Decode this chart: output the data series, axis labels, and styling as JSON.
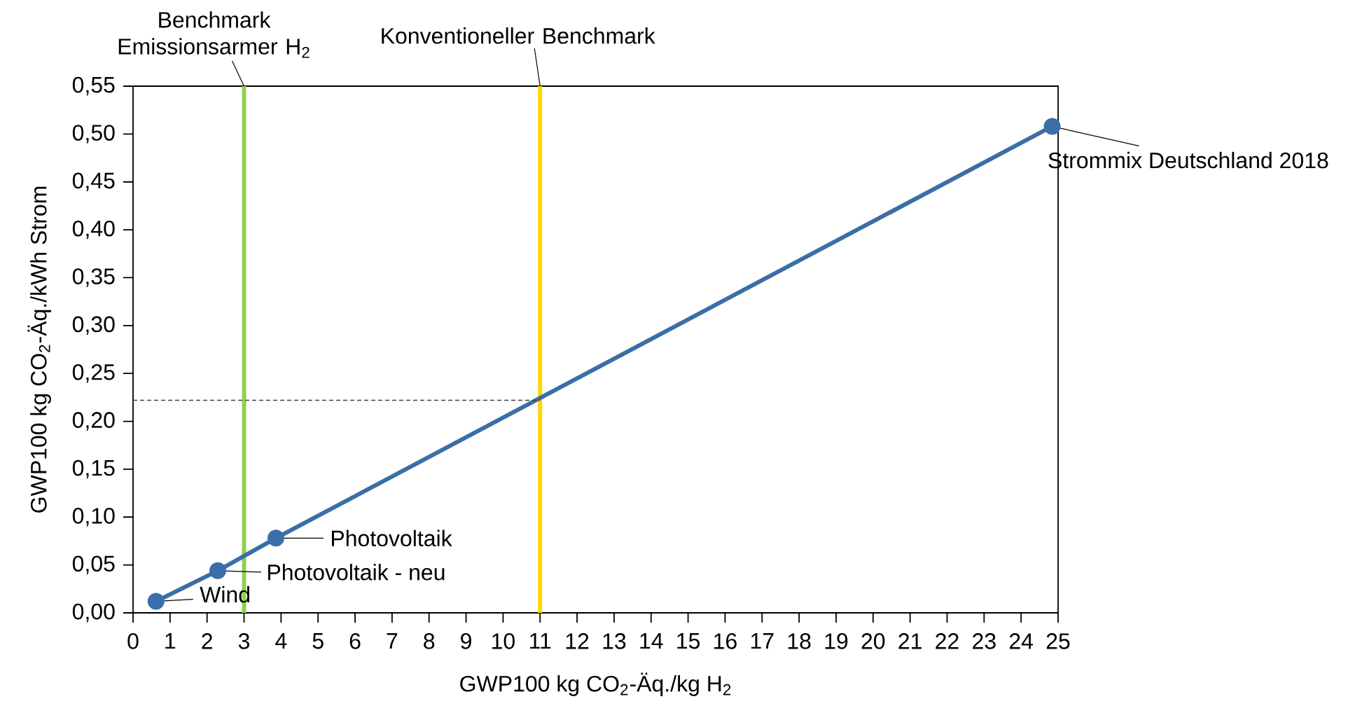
{
  "chart_data": {
    "type": "line",
    "xlabel": "GWP100 kg CO$_{2}$-Äq./kg H$_{2}$",
    "ylabel": "GWP100 kg CO$_{2}$-Äq./kWh Strom",
    "xlim": [
      0,
      25
    ],
    "xticks": [
      0,
      1,
      2,
      3,
      4,
      5,
      6,
      7,
      8,
      9,
      10,
      11,
      12,
      13,
      14,
      15,
      16,
      17,
      18,
      19,
      20,
      21,
      22,
      23,
      24,
      25
    ],
    "ylim": [
      0,
      0.55
    ],
    "yticks": [
      {
        "value": 0,
        "label": "0,00"
      },
      {
        "value": 0.05,
        "label": "0,05"
      },
      {
        "value": 0.1,
        "label": "0,10"
      },
      {
        "value": 0.15,
        "label": "0,15"
      },
      {
        "value": 0.2,
        "label": "0,20"
      },
      {
        "value": 0.25,
        "label": "0,25"
      },
      {
        "value": 0.3,
        "label": "0,30"
      },
      {
        "value": 0.35,
        "label": "0,35"
      },
      {
        "value": 0.4,
        "label": "0,40"
      },
      {
        "value": 0.45,
        "label": "0,45"
      },
      {
        "value": 0.5,
        "label": "0,50"
      },
      {
        "value": 0.55,
        "label": "0,55"
      }
    ],
    "series": [
      {
        "color": "#3a6ea8",
        "marker": "circle",
        "line_style": "solid",
        "x": [
          0.62,
          2.29,
          3.86,
          24.84
        ],
        "values": [
          0.012,
          0.044,
          0.078,
          0.508
        ]
      },
      {
        "color": "#404040",
        "marker": "none",
        "line_style": "dashed",
        "x": [
          0,
          11
        ],
        "values": [
          0.222,
          0.222
        ]
      }
    ],
    "ref_lines": [
      {
        "axis": "x",
        "value": 3,
        "label": "Benchmark Emissionsarmer H$_{2}$",
        "color": "#92d050"
      },
      {
        "axis": "x",
        "value": 11,
        "label": "Konventioneller Benchmark",
        "color": "#ffd700"
      }
    ],
    "annotations": [
      {
        "text": "Wind",
        "x": 0.62,
        "y": 0.012
      },
      {
        "text": "Photovoltaik - neu",
        "x": 2.29,
        "y": 0.044
      },
      {
        "text": "Photovoltaik",
        "x": 3.86,
        "y": 0.078
      },
      {
        "text": "Strommix Deutschland 2018",
        "x": 24.84,
        "y": 0.508
      }
    ]
  }
}
